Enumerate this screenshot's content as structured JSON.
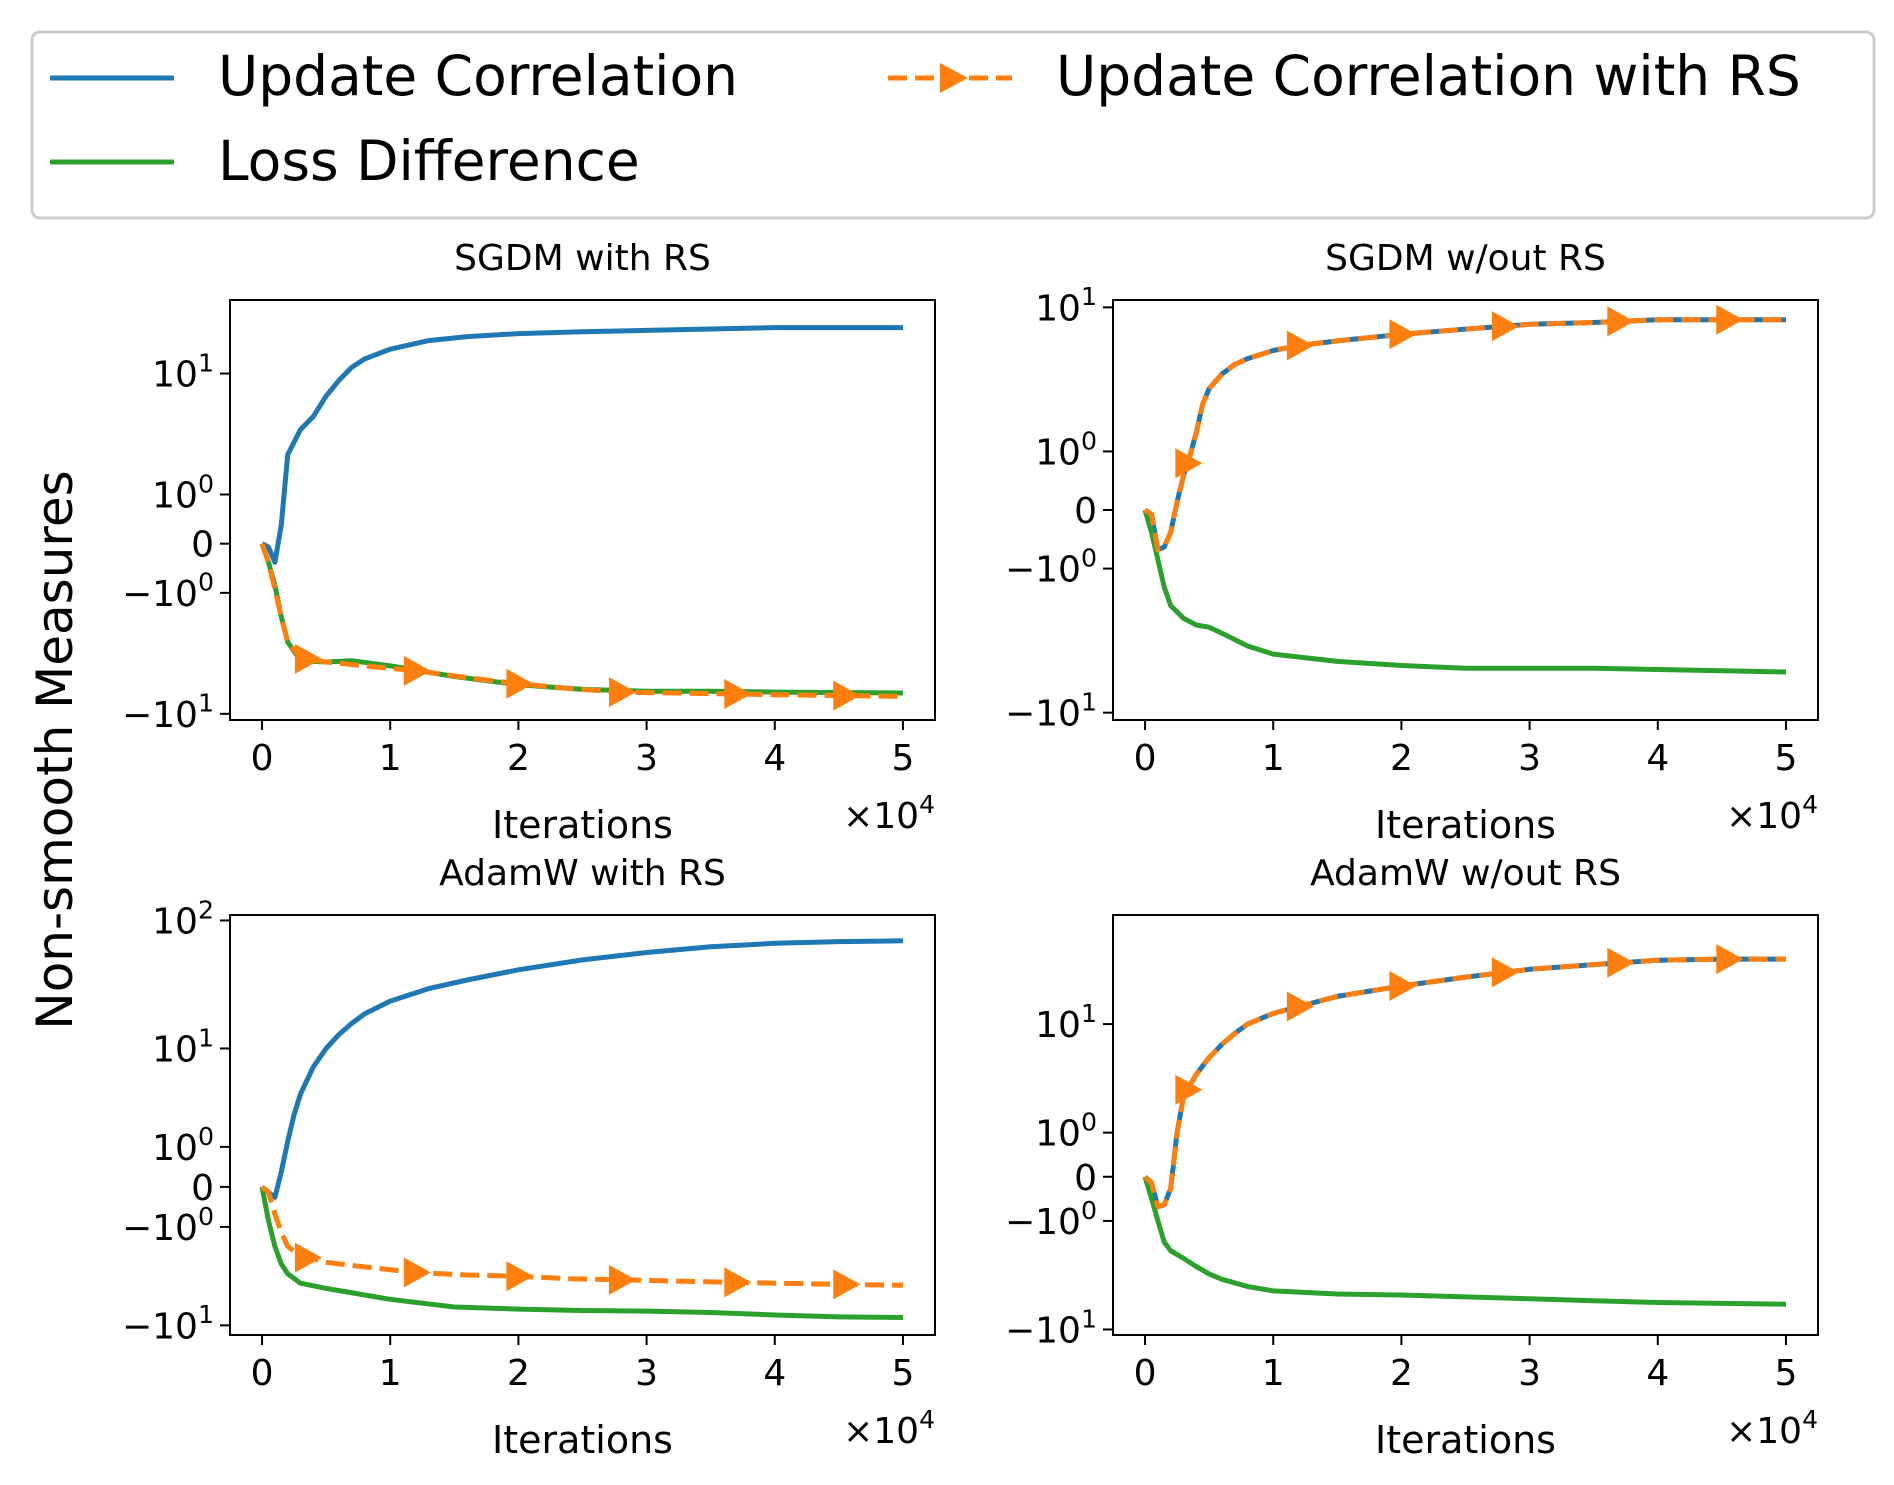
{
  "figure": {
    "ylabel": "Non-smooth Measures",
    "colors": {
      "update_corr": "#1f77b4",
      "loss_diff": "#2ca02c",
      "update_corr_rs": "#ff7f0e"
    }
  },
  "legend": {
    "items": [
      {
        "label": "Update Correlation",
        "color": "#1f77b4",
        "style": "solid"
      },
      {
        "label": "Update Correlation with RS",
        "color": "#ff7f0e",
        "style": "dashed-triangle"
      },
      {
        "label": "Loss Difference",
        "color": "#2ca02c",
        "style": "solid"
      }
    ]
  },
  "chart_data": [
    {
      "type": "line",
      "title": "SGDM with RS",
      "xlabel": "Iterations",
      "x_multiplier": "×10",
      "x_multiplier_exp": "4",
      "xlim": [
        -0.25,
        5.25
      ],
      "xticks": [
        0,
        1,
        2,
        3,
        4,
        5
      ],
      "yscale": "symlog",
      "ylim": [
        -11,
        30
      ],
      "yticks": [
        {
          "value": 10,
          "base": "10",
          "exp": "1",
          "sign": ""
        },
        {
          "value": 1,
          "base": "10",
          "exp": "0",
          "sign": ""
        },
        {
          "value": 0,
          "base": "0",
          "exp": "",
          "sign": ""
        },
        {
          "value": -1,
          "base": "10",
          "exp": "0",
          "sign": "−"
        },
        {
          "value": -10,
          "base": "10",
          "exp": "1",
          "sign": "−"
        }
      ],
      "series": [
        {
          "name": "Update Correlation",
          "style": "solid",
          "x": [
            0,
            0.05,
            0.1,
            0.15,
            0.2,
            0.3,
            0.4,
            0.5,
            0.6,
            0.7,
            0.8,
            1.0,
            1.3,
            1.6,
            2.0,
            2.5,
            3.0,
            3.5,
            4.0,
            4.5,
            5.0
          ],
          "y": [
            0,
            -0.05,
            -0.3,
            0.3,
            2.5,
            4.0,
            5.0,
            7.0,
            9.0,
            11.0,
            12.5,
            14.5,
            16.5,
            17.5,
            18.3,
            18.8,
            19.2,
            19.6,
            20.0,
            20.0,
            20.0
          ]
        },
        {
          "name": "Loss Difference",
          "style": "solid",
          "x": [
            0,
            0.05,
            0.1,
            0.15,
            0.2,
            0.3,
            0.5,
            0.7,
            1.0,
            1.5,
            2.0,
            2.5,
            3.0,
            3.5,
            4.0,
            5.0
          ],
          "y": [
            0,
            -0.3,
            -0.8,
            -1.8,
            -3.0,
            -4.2,
            -4.3,
            -4.2,
            -4.6,
            -5.5,
            -6.3,
            -6.8,
            -7.0,
            -7.0,
            -7.1,
            -7.2
          ]
        },
        {
          "name": "Update Correlation with RS",
          "style": "dashed-triangle",
          "x": [
            0,
            0.05,
            0.1,
            0.15,
            0.2,
            0.3,
            0.5,
            0.8,
            1.2,
            1.6,
            2.0,
            2.4,
            2.8,
            3.2,
            3.6,
            4.0,
            4.5,
            5.0
          ],
          "y": [
            0,
            -0.3,
            -0.9,
            -1.8,
            -3.0,
            -4.0,
            -4.3,
            -4.6,
            -5.0,
            -5.6,
            -6.2,
            -6.7,
            -7.1,
            -7.2,
            -7.3,
            -7.4,
            -7.5,
            -7.6
          ],
          "markers_x": [
            0.35,
            1.2,
            2.0,
            2.8,
            3.7,
            4.55
          ]
        }
      ]
    },
    {
      "type": "line",
      "title": "SGDM w/out RS",
      "xlabel": "Iterations",
      "x_multiplier": "×10",
      "x_multiplier_exp": "4",
      "xlim": [
        -0.25,
        5.25
      ],
      "xticks": [
        0,
        1,
        2,
        3,
        4,
        5
      ],
      "yscale": "symlog",
      "ylim": [
        -11,
        11
      ],
      "yticks": [
        {
          "value": 10,
          "base": "10",
          "exp": "1",
          "sign": ""
        },
        {
          "value": 1,
          "base": "10",
          "exp": "0",
          "sign": ""
        },
        {
          "value": 0,
          "base": "0",
          "exp": "",
          "sign": ""
        },
        {
          "value": -1,
          "base": "10",
          "exp": "0",
          "sign": "−"
        },
        {
          "value": -10,
          "base": "10",
          "exp": "1",
          "sign": "−"
        }
      ],
      "series": [
        {
          "name": "Update Correlation",
          "style": "solid",
          "x": [
            0,
            0.05,
            0.1,
            0.15,
            0.2,
            0.25,
            0.3,
            0.35,
            0.4,
            0.45,
            0.5,
            0.6,
            0.7,
            0.8,
            1.0,
            1.2,
            1.5,
            2.0,
            2.5,
            3.0,
            3.5,
            4.0,
            4.5,
            5.0
          ],
          "y": [
            0,
            -0.05,
            -0.6,
            -0.55,
            -0.3,
            0.1,
            0.5,
            0.9,
            1.5,
            2.5,
            3.2,
            4.0,
            4.6,
            5.0,
            5.6,
            6.0,
            6.4,
            7.0,
            7.5,
            8.0,
            8.2,
            8.5,
            8.5,
            8.5
          ]
        },
        {
          "name": "Loss Difference",
          "style": "solid",
          "x": [
            0,
            0.05,
            0.1,
            0.15,
            0.2,
            0.3,
            0.4,
            0.5,
            0.6,
            0.8,
            1.0,
            1.5,
            2.0,
            2.5,
            3.0,
            3.5,
            4.0,
            5.0
          ],
          "y": [
            0,
            -0.3,
            -0.8,
            -1.5,
            -2.1,
            -2.6,
            -2.9,
            -3.0,
            -3.3,
            -4.0,
            -4.5,
            -5.0,
            -5.3,
            -5.5,
            -5.5,
            -5.5,
            -5.6,
            -5.8
          ]
        },
        {
          "name": "Update Correlation with RS",
          "style": "dashed-triangle",
          "x": [
            0,
            0.05,
            0.1,
            0.15,
            0.2,
            0.25,
            0.3,
            0.35,
            0.4,
            0.45,
            0.5,
            0.6,
            0.7,
            0.8,
            1.0,
            1.2,
            1.5,
            2.0,
            2.5,
            3.0,
            3.5,
            4.0,
            4.5,
            5.0
          ],
          "y": [
            0,
            -0.05,
            -0.6,
            -0.55,
            -0.3,
            0.1,
            0.5,
            0.9,
            1.5,
            2.5,
            3.2,
            4.0,
            4.6,
            5.0,
            5.6,
            6.0,
            6.4,
            7.0,
            7.5,
            8.0,
            8.2,
            8.5,
            8.5,
            8.5
          ],
          "markers_x": [
            0.33,
            1.2,
            2.0,
            2.8,
            3.7,
            4.55
          ]
        }
      ]
    },
    {
      "type": "line",
      "title": "AdamW with RS",
      "xlabel": "Iterations",
      "x_multiplier": "×10",
      "x_multiplier_exp": "4",
      "xlim": [
        -0.25,
        5.25
      ],
      "xticks": [
        0,
        1,
        2,
        3,
        4,
        5
      ],
      "yscale": "symlog",
      "ylim": [
        -12,
        110
      ],
      "yticks": [
        {
          "value": 100,
          "base": "10",
          "exp": "2",
          "sign": ""
        },
        {
          "value": 10,
          "base": "10",
          "exp": "1",
          "sign": ""
        },
        {
          "value": 1,
          "base": "10",
          "exp": "0",
          "sign": ""
        },
        {
          "value": 0,
          "base": "0",
          "exp": "",
          "sign": ""
        },
        {
          "value": -1,
          "base": "10",
          "exp": "0",
          "sign": "−"
        },
        {
          "value": -10,
          "base": "10",
          "exp": "1",
          "sign": "−"
        }
      ],
      "series": [
        {
          "name": "Update Correlation",
          "style": "solid",
          "x": [
            0,
            0.05,
            0.1,
            0.15,
            0.2,
            0.25,
            0.3,
            0.4,
            0.5,
            0.6,
            0.7,
            0.8,
            1.0,
            1.3,
            1.6,
            2.0,
            2.5,
            3.0,
            3.5,
            4.0,
            4.5,
            5.0
          ],
          "y": [
            0,
            -0.1,
            -0.2,
            0.3,
            1.2,
            2.5,
            4.0,
            7.0,
            10.0,
            13.0,
            16.0,
            19.0,
            24.0,
            30.0,
            35.0,
            42.0,
            50.0,
            57.0,
            63.0,
            67.0,
            69.0,
            70.0
          ]
        },
        {
          "name": "Loss Difference",
          "style": "solid",
          "x": [
            0,
            0.05,
            0.1,
            0.15,
            0.2,
            0.3,
            0.5,
            0.8,
            1.0,
            1.5,
            2.0,
            2.5,
            3.0,
            3.5,
            4.0,
            4.5,
            5.0
          ],
          "y": [
            0,
            -0.8,
            -1.8,
            -2.8,
            -3.5,
            -4.3,
            -4.8,
            -5.5,
            -6.0,
            -7.0,
            -7.3,
            -7.5,
            -7.6,
            -7.8,
            -8.2,
            -8.5,
            -8.6
          ]
        },
        {
          "name": "Update Correlation with RS",
          "style": "dashed-triangle",
          "x": [
            0,
            0.05,
            0.1,
            0.15,
            0.2,
            0.3,
            0.5,
            0.8,
            1.2,
            1.6,
            2.0,
            2.4,
            2.8,
            3.2,
            3.6,
            4.0,
            4.5,
            5.0
          ],
          "y": [
            0,
            -0.1,
            -0.6,
            -1.2,
            -1.8,
            -2.3,
            -2.7,
            -3.0,
            -3.4,
            -3.6,
            -3.7,
            -3.9,
            -4.0,
            -4.1,
            -4.2,
            -4.3,
            -4.4,
            -4.5
          ],
          "markers_x": [
            0.35,
            1.2,
            2.0,
            2.8,
            3.7,
            4.55
          ]
        }
      ]
    },
    {
      "type": "line",
      "title": "AdamW w/out RS",
      "xlabel": "Iterations",
      "x_multiplier": "×10",
      "x_multiplier_exp": "4",
      "xlim": [
        -0.25,
        5.25
      ],
      "xticks": [
        0,
        1,
        2,
        3,
        4,
        5
      ],
      "yscale": "symlog",
      "ylim": [
        -11,
        60
      ],
      "yticks": [
        {
          "value": 10,
          "base": "10",
          "exp": "1",
          "sign": ""
        },
        {
          "value": 1,
          "base": "10",
          "exp": "0",
          "sign": ""
        },
        {
          "value": 0,
          "base": "0",
          "exp": "",
          "sign": ""
        },
        {
          "value": -1,
          "base": "10",
          "exp": "0",
          "sign": "−"
        },
        {
          "value": -10,
          "base": "10",
          "exp": "1",
          "sign": "−"
        }
      ],
      "series": [
        {
          "name": "Update Correlation",
          "style": "solid",
          "x": [
            0,
            0.05,
            0.1,
            0.15,
            0.2,
            0.25,
            0.3,
            0.35,
            0.4,
            0.5,
            0.6,
            0.7,
            0.8,
            1.0,
            1.2,
            1.5,
            2.0,
            2.5,
            3.0,
            3.5,
            4.0,
            4.5,
            5.0
          ],
          "y": [
            0,
            -0.1,
            -0.6,
            -0.55,
            -0.2,
            1.0,
            2.5,
            3.2,
            4.0,
            5.5,
            7.0,
            8.5,
            10.0,
            12.0,
            13.5,
            16.0,
            19.0,
            22.0,
            25.0,
            27.0,
            29.0,
            29.5,
            29.5
          ]
        },
        {
          "name": "Loss Difference",
          "style": "solid",
          "x": [
            0,
            0.05,
            0.1,
            0.15,
            0.2,
            0.3,
            0.4,
            0.5,
            0.6,
            0.8,
            1.0,
            1.5,
            2.0,
            2.5,
            3.0,
            3.5,
            4.0,
            5.0
          ],
          "y": [
            0,
            -0.4,
            -1.0,
            -1.8,
            -2.2,
            -2.6,
            -3.1,
            -3.6,
            -4.0,
            -4.6,
            -5.0,
            -5.3,
            -5.4,
            -5.6,
            -5.8,
            -6.0,
            -6.2,
            -6.4
          ]
        },
        {
          "name": "Update Correlation with RS",
          "style": "dashed-triangle",
          "x": [
            0,
            0.05,
            0.1,
            0.15,
            0.2,
            0.25,
            0.3,
            0.35,
            0.4,
            0.5,
            0.6,
            0.7,
            0.8,
            1.0,
            1.2,
            1.5,
            2.0,
            2.5,
            3.0,
            3.5,
            4.0,
            4.5,
            5.0
          ],
          "y": [
            0,
            -0.1,
            -0.6,
            -0.55,
            -0.2,
            1.0,
            2.5,
            3.2,
            4.0,
            5.5,
            7.0,
            8.5,
            10.0,
            12.0,
            13.5,
            16.0,
            19.0,
            22.0,
            25.0,
            27.0,
            29.0,
            29.5,
            29.5
          ],
          "markers_x": [
            0.33,
            1.2,
            2.0,
            2.8,
            3.7,
            4.55
          ]
        }
      ]
    }
  ]
}
